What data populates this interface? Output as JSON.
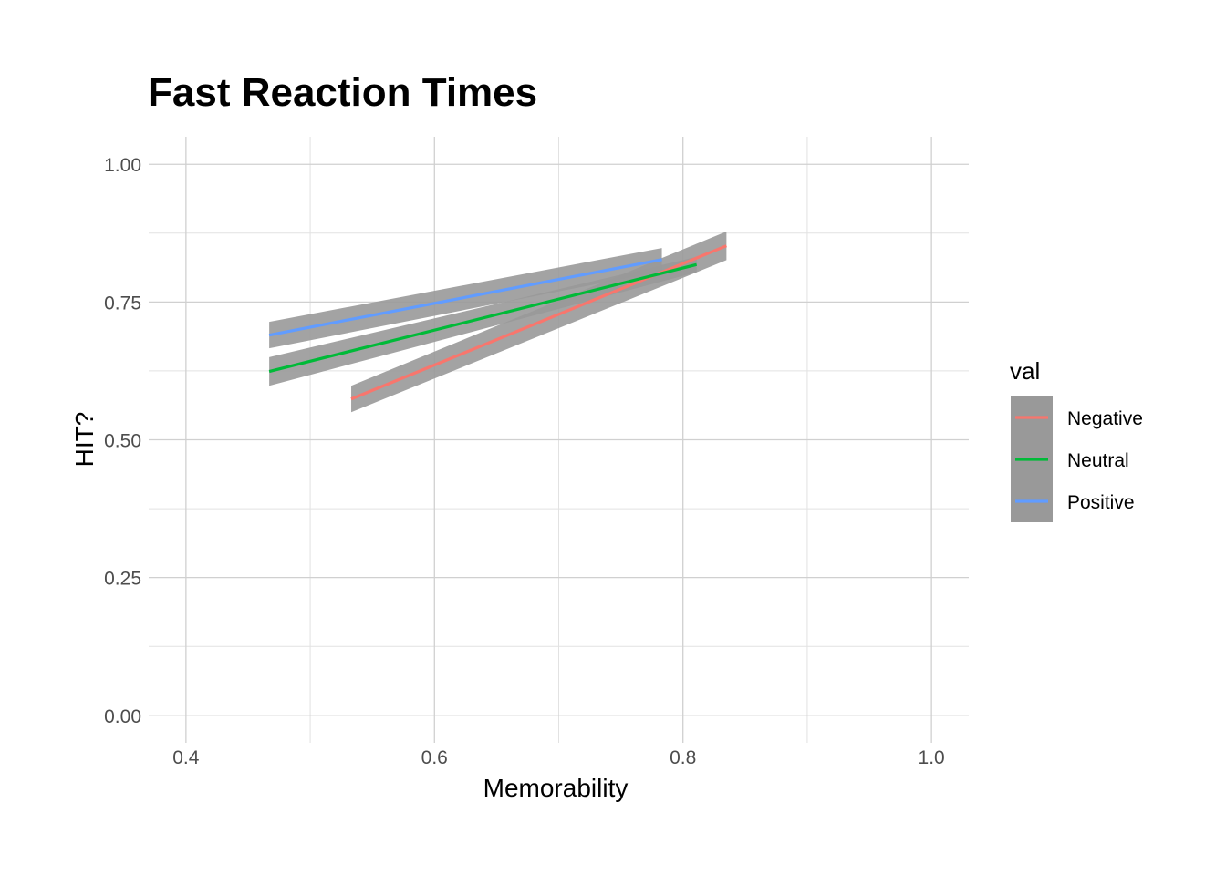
{
  "chart_data": {
    "type": "line",
    "title": "Fast Reaction Times",
    "xlabel": "Memorability",
    "ylabel": "HIT?",
    "xlim": [
      0.37,
      1.03
    ],
    "ylim": [
      -0.05,
      1.05
    ],
    "x_ticks": [
      0.4,
      0.6,
      0.8,
      1.0
    ],
    "x_tick_labels": [
      "0.4",
      "0.6",
      "0.8",
      "1.0"
    ],
    "y_ticks": [
      0.0,
      0.25,
      0.5,
      0.75,
      1.0
    ],
    "y_tick_labels": [
      "0.00",
      "0.25",
      "0.50",
      "0.75",
      "1.00"
    ],
    "grid": true,
    "confidence_band_color": "#999999",
    "legend": {
      "title": "val",
      "position": "right"
    },
    "series": [
      {
        "name": "Negative",
        "color": "#F8766D",
        "x": [
          0.533,
          0.835
        ],
        "y": [
          0.574,
          0.852
        ],
        "lower": [
          0.55,
          0.826
        ],
        "upper": [
          0.598,
          0.878
        ]
      },
      {
        "name": "Neutral",
        "color": "#00BA38",
        "x": [
          0.467,
          0.811
        ],
        "y": [
          0.624,
          0.818
        ],
        "lower": [
          0.598,
          0.804
        ],
        "upper": [
          0.65,
          0.832
        ]
      },
      {
        "name": "Positive",
        "color": "#619CFF",
        "x": [
          0.467,
          0.783
        ],
        "y": [
          0.69,
          0.827
        ],
        "lower": [
          0.666,
          0.806
        ],
        "upper": [
          0.714,
          0.848
        ]
      }
    ]
  }
}
